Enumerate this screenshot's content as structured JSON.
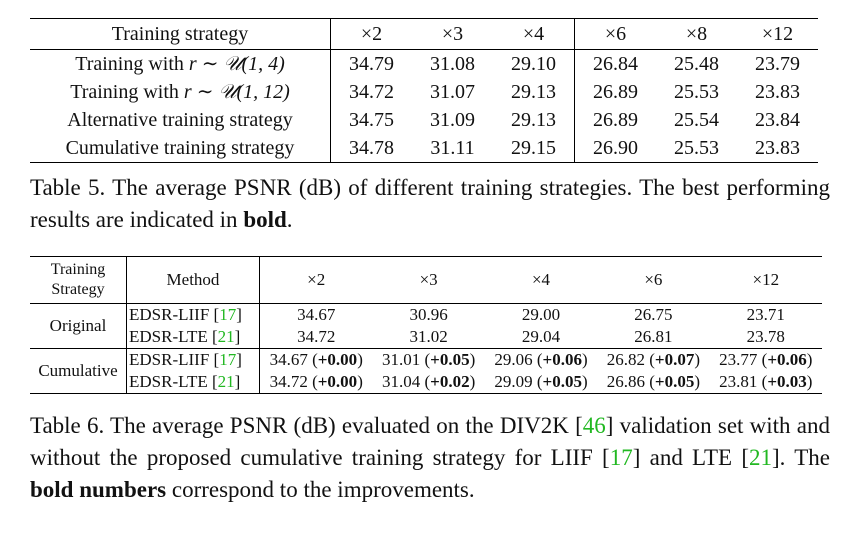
{
  "table5": {
    "headers": [
      "Training strategy",
      "×2",
      "×3",
      "×4",
      "×6",
      "×8",
      "×12"
    ],
    "rows": [
      {
        "prefix": "Training with ",
        "math": "r ∼ 𝒰(1, 4)",
        "label": "",
        "values": [
          "34.79",
          "31.08",
          "29.10",
          "26.84",
          "25.48",
          "23.79"
        ],
        "bold": [
          true,
          false,
          false,
          false,
          false,
          false
        ]
      },
      {
        "prefix": "Training with ",
        "math": "r ∼ 𝒰(1, 12)",
        "label": "",
        "values": [
          "34.72",
          "31.07",
          "29.13",
          "26.89",
          "25.53",
          "23.83"
        ],
        "bold": [
          false,
          false,
          false,
          false,
          false,
          false
        ]
      },
      {
        "prefix": "",
        "math": "",
        "label": "Alternative training strategy",
        "values": [
          "34.75",
          "31.09",
          "29.13",
          "26.89",
          "25.54",
          "23.84"
        ],
        "bold": [
          false,
          false,
          false,
          false,
          true,
          true
        ]
      },
      {
        "prefix": "",
        "math": "",
        "label": "Cumulative training strategy",
        "values": [
          "34.78",
          "31.11",
          "29.15",
          "26.90",
          "25.53",
          "23.83"
        ],
        "bold": [
          false,
          true,
          true,
          true,
          false,
          false
        ]
      }
    ],
    "caption_main": "Table 5. The average PSNR (dB) of different training strategies. The best performing results are indicated in ",
    "caption_bold": "bold",
    "caption_end": "."
  },
  "table6": {
    "header_strategy_line1": "Training",
    "header_strategy_line2": "Strategy",
    "header_method": "Method",
    "scales": [
      "×2",
      "×3",
      "×4",
      "×6",
      "×12"
    ],
    "groups": [
      {
        "name": "Original",
        "rows": [
          {
            "method": "EDSR-LIIF",
            "cite": "17",
            "values": [
              "34.67",
              "30.96",
              "29.00",
              "26.75",
              "23.71"
            ],
            "deltas": [
              "",
              "",
              "",
              "",
              ""
            ]
          },
          {
            "method": "EDSR-LTE",
            "cite": "21",
            "values": [
              "34.72",
              "31.02",
              "29.04",
              "26.81",
              "23.78"
            ],
            "deltas": [
              "",
              "",
              "",
              "",
              ""
            ]
          }
        ]
      },
      {
        "name": "Cumulative",
        "rows": [
          {
            "method": "EDSR-LIIF",
            "cite": "17",
            "values": [
              "34.67",
              "31.01",
              "29.06",
              "26.82",
              "23.77"
            ],
            "deltas": [
              "+0.00",
              "+0.05",
              "+0.06",
              "+0.07",
              "+0.06"
            ]
          },
          {
            "method": "EDSR-LTE",
            "cite": "21",
            "values": [
              "34.72",
              "31.04",
              "29.09",
              "26.86",
              "23.81"
            ],
            "deltas": [
              "+0.00",
              "+0.02",
              "+0.05",
              "+0.05",
              "+0.03"
            ]
          }
        ]
      }
    ],
    "caption": {
      "p1": "Table 6.  The average PSNR (dB) evaluated on the DIV2K ",
      "cite1": "46",
      "p2": " validation set with and without the proposed cumulative training strategy for LIIF ",
      "cite2": "17",
      "p3": " and LTE ",
      "cite3": "21",
      "p4": ".  The ",
      "bold": "bold numbers",
      "p5": " correspond to the improvements."
    }
  },
  "colors": {
    "citation": "#22b822",
    "text": "#111111"
  }
}
